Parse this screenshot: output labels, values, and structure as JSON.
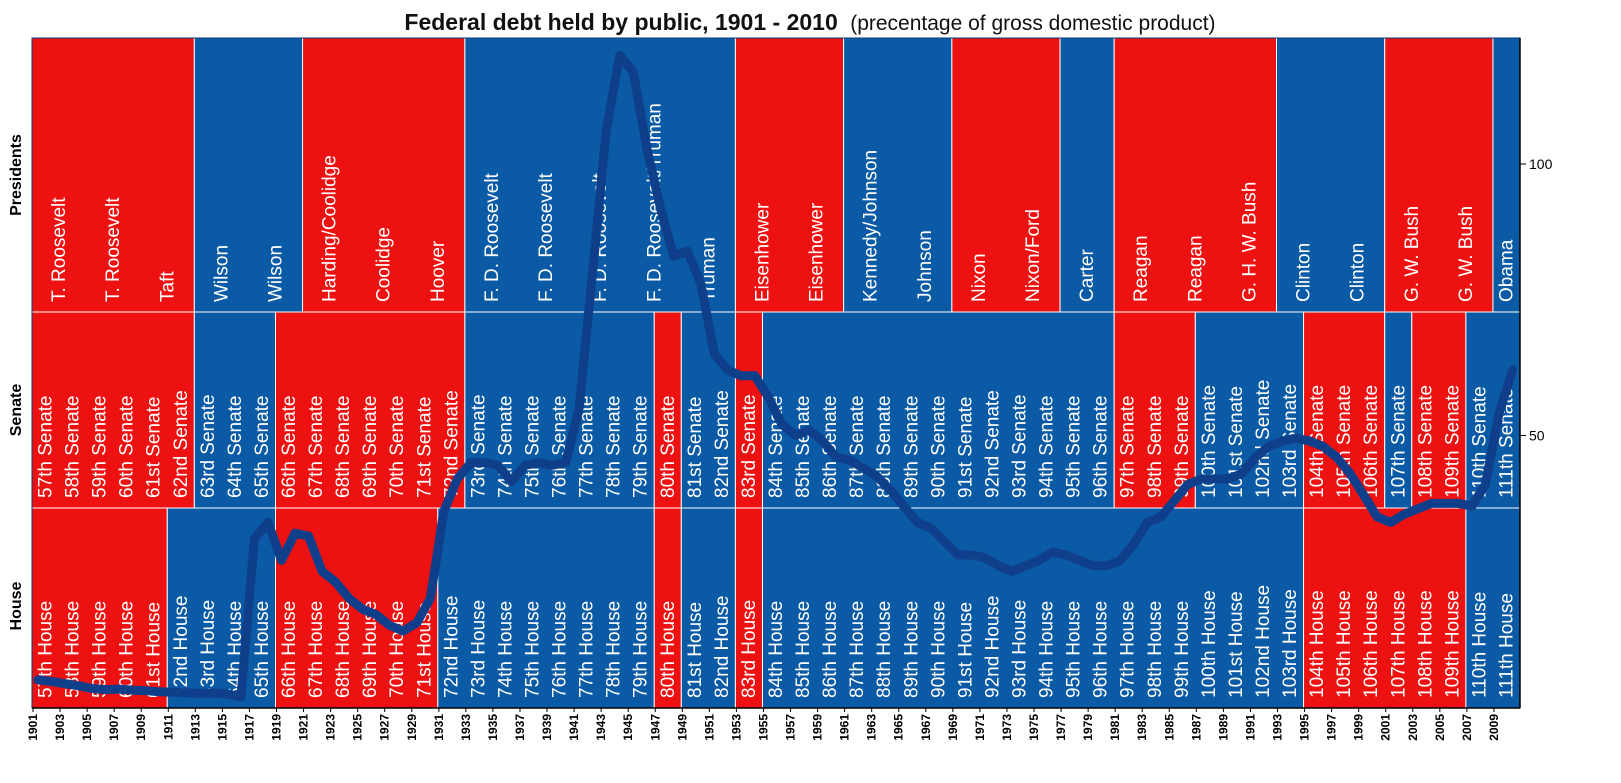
{
  "chart_data": {
    "type": "line",
    "title": "Federal debt held by public, 1901 - 2010",
    "subtitle": "(precentage of gross domestic product)",
    "row_labels": {
      "presidents": "Presidents",
      "senate": "Senate",
      "house": "House"
    },
    "party_colors": {
      "R": "#ee1111",
      "D": "#0a5aa5"
    },
    "line_color": "#0f3f8a",
    "x_range": [
      1901,
      2010
    ],
    "ylim": [
      0,
      125
    ],
    "y_ticks": [
      50,
      100
    ],
    "year_tick_labels": [
      "1901",
      "1903",
      "1905",
      "1907",
      "1909",
      "1911",
      "1913",
      "1915",
      "1917",
      "1919",
      "1921",
      "1923",
      "1925",
      "1927",
      "1929",
      "1931",
      "1933",
      "1935",
      "1937",
      "1939",
      "1941",
      "1943",
      "1945",
      "1947",
      "1949",
      "1951",
      "1953",
      "1955",
      "1957",
      "1959",
      "1961",
      "1963",
      "1965",
      "1967",
      "1969",
      "1971",
      "1973",
      "1975",
      "1977",
      "1979",
      "1981",
      "1983",
      "1985",
      "1987",
      "1989",
      "1991",
      "1993",
      "1995",
      "1997",
      "1999",
      "2001",
      "2003",
      "2005",
      "2007",
      "2009"
    ],
    "presidents": [
      {
        "start": 1901,
        "end": 1913,
        "party": "R",
        "labels": [
          "T. Roosevelt",
          "T. Roosevelt",
          "Taft"
        ]
      },
      {
        "start": 1913,
        "end": 1921,
        "party": "D",
        "labels": [
          "Wilson",
          "Wilson"
        ]
      },
      {
        "start": 1921,
        "end": 1933,
        "party": "R",
        "labels": [
          "Harding/Coolidge",
          "Coolidge",
          "Hoover"
        ]
      },
      {
        "start": 1933,
        "end": 1953,
        "party": "D",
        "labels": [
          "F. D. Roosevelt",
          "F. D. Roosevelt",
          "F. D. Roosevelt",
          "F. D. Roosevelt/Truman",
          "Truman"
        ]
      },
      {
        "start": 1953,
        "end": 1961,
        "party": "R",
        "labels": [
          "Eisenhower",
          "Eisenhower"
        ]
      },
      {
        "start": 1961,
        "end": 1969,
        "party": "D",
        "labels": [
          "Kennedy/Johnson",
          "Johnson"
        ]
      },
      {
        "start": 1969,
        "end": 1977,
        "party": "R",
        "labels": [
          "Nixon",
          "Nixon/Ford"
        ]
      },
      {
        "start": 1977,
        "end": 1981,
        "party": "D",
        "labels": [
          "Carter"
        ]
      },
      {
        "start": 1981,
        "end": 1993,
        "party": "R",
        "labels": [
          "Reagan",
          "Reagan",
          "G. H. W. Bush"
        ]
      },
      {
        "start": 1993,
        "end": 2001,
        "party": "D",
        "labels": [
          "Clinton",
          "Clinton"
        ]
      },
      {
        "start": 2001,
        "end": 2009,
        "party": "R",
        "labels": [
          "G. W. Bush",
          "G. W. Bush"
        ]
      },
      {
        "start": 2009,
        "end": 2011,
        "party": "D",
        "labels": [
          "Obama"
        ]
      }
    ],
    "senate": [
      {
        "start": 1901,
        "end": 1913,
        "party": "R",
        "labels": [
          "57th Senate",
          "58th Senate",
          "59th Senate",
          "60th Senate",
          "61st Senate",
          "62nd Senate"
        ]
      },
      {
        "start": 1913,
        "end": 1919,
        "party": "D",
        "labels": [
          "63rd Senate",
          "64th Senate",
          "65th Senate"
        ]
      },
      {
        "start": 1919,
        "end": 1933,
        "party": "R",
        "labels": [
          "66th Senate",
          "67th Senate",
          "68th Senate",
          "69th Senate",
          "70th Senate",
          "71st Senate",
          "72nd Senate"
        ]
      },
      {
        "start": 1933,
        "end": 1947,
        "party": "D",
        "labels": [
          "73rd Senate",
          "74th Senate",
          "75th Senate",
          "76th Senate",
          "77th Senate",
          "78th Senate",
          "79th Senate"
        ]
      },
      {
        "start": 1947,
        "end": 1949,
        "party": "R",
        "labels": [
          "80th Senate"
        ]
      },
      {
        "start": 1949,
        "end": 1953,
        "party": "D",
        "labels": [
          "81st Senate",
          "82nd Senate"
        ]
      },
      {
        "start": 1953,
        "end": 1955,
        "party": "R",
        "labels": [
          "83rd Senate"
        ]
      },
      {
        "start": 1955,
        "end": 1981,
        "party": "D",
        "labels": [
          "84th Senate",
          "85th Senate",
          "86th Senate",
          "87th Senate",
          "88th Senate",
          "89th Senate",
          "90th Senate",
          "91st Senate",
          "92nd Senate",
          "93rd Senate",
          "94th Senate",
          "95th Senate",
          "96th Senate"
        ]
      },
      {
        "start": 1981,
        "end": 1987,
        "party": "R",
        "labels": [
          "97th Senate",
          "98th Senate",
          "99th Senate"
        ]
      },
      {
        "start": 1987,
        "end": 1995,
        "party": "D",
        "labels": [
          "100th Senate",
          "101st Senate",
          "102nd Senate",
          "103rd Senate"
        ]
      },
      {
        "start": 1995,
        "end": 2001,
        "party": "R",
        "labels": [
          "104th Senate",
          "105th Senate",
          "106th Senate"
        ]
      },
      {
        "start": 2001,
        "end": 2003,
        "party": "D",
        "labels": [
          "107th Senate"
        ]
      },
      {
        "start": 2003,
        "end": 2007,
        "party": "R",
        "labels": [
          "108th Senate",
          "109th Senate"
        ]
      },
      {
        "start": 2007,
        "end": 2011,
        "party": "D",
        "labels": [
          "110th Senate",
          "111th Senate"
        ]
      }
    ],
    "house": [
      {
        "start": 1901,
        "end": 1911,
        "party": "R",
        "labels": [
          "57th House",
          "58th House",
          "59th House",
          "60th House",
          "61st House"
        ]
      },
      {
        "start": 1911,
        "end": 1919,
        "party": "D",
        "labels": [
          "62nd House",
          "63rd House",
          "64th House",
          "65th House"
        ]
      },
      {
        "start": 1919,
        "end": 1931,
        "party": "R",
        "labels": [
          "66th House",
          "67th House",
          "68th House",
          "69th House",
          "70th House",
          "71st House"
        ]
      },
      {
        "start": 1931,
        "end": 1947,
        "party": "D",
        "labels": [
          "72nd House",
          "73rd House",
          "74th House",
          "75th House",
          "76th House",
          "77th House",
          "78th House",
          "79th House"
        ]
      },
      {
        "start": 1947,
        "end": 1949,
        "party": "R",
        "labels": [
          "80th House"
        ]
      },
      {
        "start": 1949,
        "end": 1953,
        "party": "D",
        "labels": [
          "81st House",
          "82nd House"
        ]
      },
      {
        "start": 1953,
        "end": 1955,
        "party": "R",
        "labels": [
          "83rd House"
        ]
      },
      {
        "start": 1955,
        "end": 1995,
        "party": "D",
        "labels": [
          "84th House",
          "85th House",
          "86th House",
          "87th House",
          "88th House",
          "89th House",
          "90th House",
          "91st House",
          "92nd House",
          "93rd House",
          "94th House",
          "95th House",
          "96th House",
          "97th House",
          "98th House",
          "99th House",
          "100th House",
          "101st House",
          "102nd House",
          "103rd House"
        ]
      },
      {
        "start": 1995,
        "end": 2007,
        "party": "R",
        "labels": [
          "104th House",
          "105th House",
          "106th House",
          "107th House",
          "108th House",
          "109th House"
        ]
      },
      {
        "start": 2007,
        "end": 2011,
        "party": "D",
        "labels": [
          "110th House",
          "111th House"
        ]
      }
    ],
    "series": [
      {
        "name": "Debt held by public (% of GDP)",
        "x": [
          1901,
          1902,
          1903,
          1904,
          1905,
          1906,
          1907,
          1908,
          1909,
          1910,
          1911,
          1912,
          1913,
          1914,
          1915,
          1916,
          1917,
          1918,
          1919,
          1920,
          1921,
          1922,
          1923,
          1924,
          1925,
          1926,
          1927,
          1928,
          1929,
          1930,
          1931,
          1932,
          1933,
          1934,
          1935,
          1936,
          1937,
          1938,
          1939,
          1940,
          1941,
          1942,
          1943,
          1944,
          1945,
          1946,
          1947,
          1948,
          1949,
          1950,
          1951,
          1952,
          1953,
          1954,
          1955,
          1956,
          1957,
          1958,
          1959,
          1960,
          1961,
          1962,
          1963,
          1964,
          1965,
          1966,
          1967,
          1968,
          1969,
          1970,
          1971,
          1972,
          1973,
          1974,
          1975,
          1976,
          1977,
          1978,
          1979,
          1980,
          1981,
          1982,
          1983,
          1984,
          1985,
          1986,
          1987,
          1988,
          1989,
          1990,
          1991,
          1992,
          1993,
          1994,
          1995,
          1996,
          1997,
          1998,
          1999,
          2000,
          2001,
          2002,
          2003,
          2004,
          2005,
          2006,
          2007,
          2008,
          2009,
          2010
        ],
        "y": [
          5,
          4.7,
          4.3,
          3.9,
          3.4,
          3.2,
          3.3,
          3.1,
          3.0,
          2.8,
          2.7,
          2.6,
          2.5,
          2.6,
          2.4,
          1.8,
          31,
          34,
          27,
          32,
          31.5,
          25,
          23,
          20,
          18,
          17,
          15,
          14,
          15.5,
          20,
          36,
          42,
          45,
          45,
          44.5,
          41.5,
          44.5,
          45,
          44.5,
          45,
          55,
          80,
          106,
          120,
          117,
          103,
          92,
          83,
          84,
          78,
          65,
          62,
          61,
          61,
          57,
          52,
          50,
          51,
          49,
          46,
          45.5,
          44,
          42.5,
          40,
          37,
          34,
          33,
          30.5,
          28,
          28,
          27.5,
          26,
          25,
          26,
          27,
          28.5,
          28,
          27,
          26,
          26,
          27,
          30,
          34,
          35,
          38,
          41,
          42,
          42,
          42,
          43,
          46,
          48,
          49,
          49.5,
          49,
          48,
          46,
          43,
          39,
          35,
          34,
          35.5,
          36.5,
          37.5,
          37.5,
          37.5,
          37,
          41,
          54,
          62
        ]
      }
    ]
  }
}
